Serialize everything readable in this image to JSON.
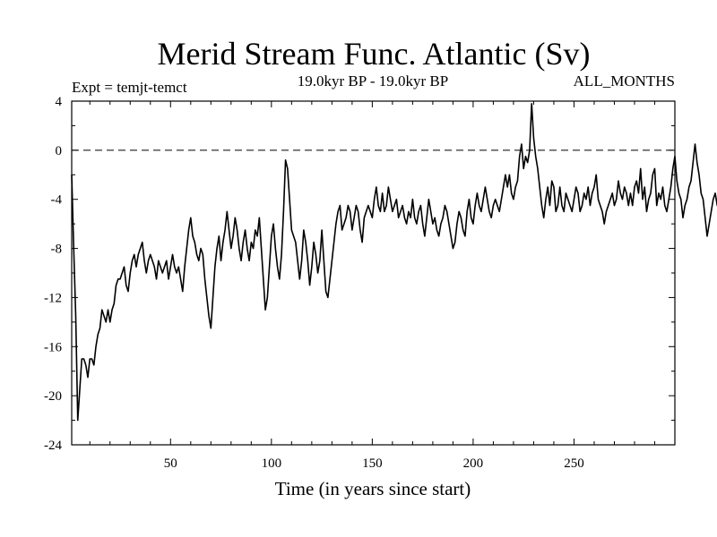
{
  "chart_data": {
    "type": "line",
    "title": "Merid Stream Func. Atlantic (Sv)",
    "subtitle_left": "Expt = temjt-temct",
    "subtitle_center": "19.0kyr BP - 19.0kyr BP",
    "subtitle_right": "ALL_MONTHS",
    "xlabel": "Time (in years since start)",
    "ylabel": "",
    "xlim": [
      1,
      300
    ],
    "ylim": [
      -24,
      4
    ],
    "xticks": [
      50,
      100,
      150,
      200,
      250
    ],
    "yticks": [
      4,
      0,
      -4,
      -8,
      -12,
      -16,
      -20,
      -24
    ],
    "reference_line": {
      "y": 0,
      "style": "dashed"
    },
    "series": [
      {
        "name": "temjt-temct",
        "x_start": 1,
        "x_step": 1,
        "values": [
          -2.0,
          -8.0,
          -13.5,
          -22.0,
          -19.5,
          -17.0,
          -17.0,
          -17.5,
          -18.5,
          -17.0,
          -17.0,
          -17.5,
          -16.0,
          -15.0,
          -14.5,
          -13.0,
          -13.5,
          -14.0,
          -13.0,
          -14.0,
          -13.0,
          -12.5,
          -11.0,
          -10.5,
          -10.5,
          -10.0,
          -9.5,
          -11.0,
          -11.5,
          -10.0,
          -9.0,
          -8.5,
          -9.5,
          -8.5,
          -8.0,
          -7.5,
          -9.0,
          -10.0,
          -9.0,
          -8.5,
          -9.0,
          -9.5,
          -10.5,
          -9.0,
          -9.5,
          -10.0,
          -9.5,
          -9.0,
          -10.5,
          -9.5,
          -8.5,
          -9.5,
          -10.0,
          -9.5,
          -10.5,
          -11.5,
          -9.5,
          -8.0,
          -6.5,
          -5.5,
          -7.0,
          -7.5,
          -8.5,
          -9.0,
          -8.0,
          -8.5,
          -10.5,
          -12.0,
          -13.5,
          -14.5,
          -12.0,
          -9.5,
          -8.0,
          -7.0,
          -9.0,
          -7.5,
          -6.5,
          -5.0,
          -6.5,
          -8.0,
          -7.0,
          -5.5,
          -6.5,
          -8.0,
          -9.0,
          -7.5,
          -6.5,
          -8.0,
          -9.0,
          -7.5,
          -8.0,
          -6.5,
          -7.0,
          -5.5,
          -8.0,
          -10.5,
          -13.0,
          -12.0,
          -9.5,
          -7.0,
          -6.0,
          -8.0,
          -9.5,
          -10.5,
          -8.5,
          -5.0,
          -0.8,
          -1.5,
          -4.0,
          -6.5,
          -7.0,
          -7.5,
          -9.0,
          -10.5,
          -9.0,
          -6.5,
          -7.5,
          -9.0,
          -11.0,
          -9.5,
          -7.5,
          -8.5,
          -10.0,
          -9.0,
          -6.5,
          -9.0,
          -11.5,
          -12.0,
          -10.5,
          -9.0,
          -7.5,
          -6.0,
          -5.0,
          -4.5,
          -6.5,
          -6.0,
          -5.5,
          -4.5,
          -5.0,
          -6.5,
          -5.5,
          -4.5,
          -5.0,
          -6.5,
          -7.5,
          -5.5,
          -5.0,
          -4.5,
          -5.0,
          -5.5,
          -4.0,
          -3.0,
          -4.5,
          -5.0,
          -3.5,
          -5.0,
          -4.5,
          -3.0,
          -4.0,
          -5.0,
          -4.5,
          -4.0,
          -5.5,
          -5.0,
          -4.5,
          -5.5,
          -6.0,
          -5.0,
          -5.5,
          -4.0,
          -5.5,
          -6.0,
          -5.0,
          -4.5,
          -6.0,
          -7.0,
          -5.5,
          -4.0,
          -5.0,
          -6.0,
          -5.5,
          -6.5,
          -7.0,
          -6.0,
          -5.5,
          -4.5,
          -5.0,
          -6.0,
          -7.0,
          -8.0,
          -7.5,
          -6.0,
          -5.0,
          -5.5,
          -6.5,
          -7.0,
          -5.0,
          -4.0,
          -5.5,
          -6.0,
          -4.5,
          -3.5,
          -4.5,
          -5.0,
          -4.0,
          -3.0,
          -4.0,
          -5.0,
          -5.5,
          -4.5,
          -4.0,
          -4.5,
          -5.0,
          -4.0,
          -3.0,
          -2.0,
          -3.0,
          -2.0,
          -3.5,
          -4.0,
          -3.0,
          -2.5,
          -0.5,
          0.5,
          -1.5,
          -0.5,
          -1.0,
          0.0,
          3.8,
          1.0,
          -0.5,
          -1.5,
          -3.0,
          -4.5,
          -5.5,
          -4.0,
          -3.0,
          -4.5,
          -2.5,
          -3.0,
          -5.0,
          -4.5,
          -3.0,
          -4.5,
          -5.0,
          -3.5,
          -4.0,
          -4.5,
          -5.0,
          -4.0,
          -3.0,
          -3.5,
          -5.0,
          -4.5,
          -3.5,
          -4.0,
          -3.0,
          -4.5,
          -3.5,
          -3.0,
          -2.0,
          -4.0,
          -4.5,
          -5.0,
          -6.0,
          -5.0,
          -4.5,
          -4.0,
          -3.5,
          -4.5,
          -4.0,
          -2.5,
          -3.5,
          -4.0,
          -3.0,
          -3.5,
          -4.5,
          -3.5,
          -4.5,
          -3.0,
          -2.5,
          -3.5,
          -1.5,
          -4.0,
          -3.0,
          -5.0,
          -4.0,
          -3.5,
          -2.0,
          -1.5,
          -4.5,
          -3.5,
          -4.0,
          -3.0,
          -4.5,
          -5.0,
          -4.0,
          -3.0,
          -1.5,
          -0.5,
          -2.5,
          -3.5,
          -4.0,
          -5.5,
          -4.5,
          -4.0,
          -3.0,
          -2.5,
          -1.0,
          0.5,
          -1.0,
          -2.0,
          -3.5,
          -4.0,
          -5.5,
          -7.0,
          -6.0,
          -5.0,
          -4.0,
          -3.5,
          -4.5,
          -3.0,
          -4.0,
          -5.0,
          -4.0,
          -3.0,
          -3.5,
          -4.0,
          -3.0,
          -2.0,
          -1.0,
          -1.0,
          -2.5,
          -3.0,
          -2.0,
          -2.5,
          -3.0,
          -2.0,
          -1.5,
          -2.5,
          -3.5,
          -2.5,
          -1.5,
          -2.0,
          -3.5,
          -2.5,
          -1.5,
          -1.0,
          -2.5,
          -3.0,
          -4.5,
          -2.5,
          -1.5,
          -0.5,
          2.0,
          -1.5,
          -3.0,
          -4.0,
          -5.0,
          -4.0,
          -3.0,
          -2.5,
          -3.5,
          -4.5,
          -5.0,
          -6.0,
          -6.5,
          -7.0,
          -6.0,
          -5.5,
          -4.5,
          -4.0,
          -3.5,
          -4.0,
          -5.0,
          -4.5,
          -4.0,
          -3.5,
          -3.0,
          -3.0,
          -2.0,
          -2.5,
          -3.5,
          -3.0,
          -2.0,
          -1.5,
          -3.0,
          -3.5,
          -2.0,
          -2.5,
          -5.5,
          -3.0,
          -2.0,
          -3.0,
          -1.5,
          -0.5,
          1.0,
          2.0,
          0.5,
          -1.5,
          -2.5,
          -3.0,
          -2.0,
          -1.5,
          -0.5,
          -1.0,
          -2.5,
          -1.5,
          -2.0,
          -3.0,
          -2.5,
          -1.5,
          -2.0,
          -3.0,
          -1.5,
          -0.5,
          0.5,
          1.2,
          0.0,
          -1.0,
          -2.0,
          0.8,
          -0.5,
          -2.5,
          -2.0,
          -1.0,
          -1.5,
          -2.0,
          -3.0,
          -2.5,
          -1.5,
          -2.0
        ]
      }
    ]
  }
}
